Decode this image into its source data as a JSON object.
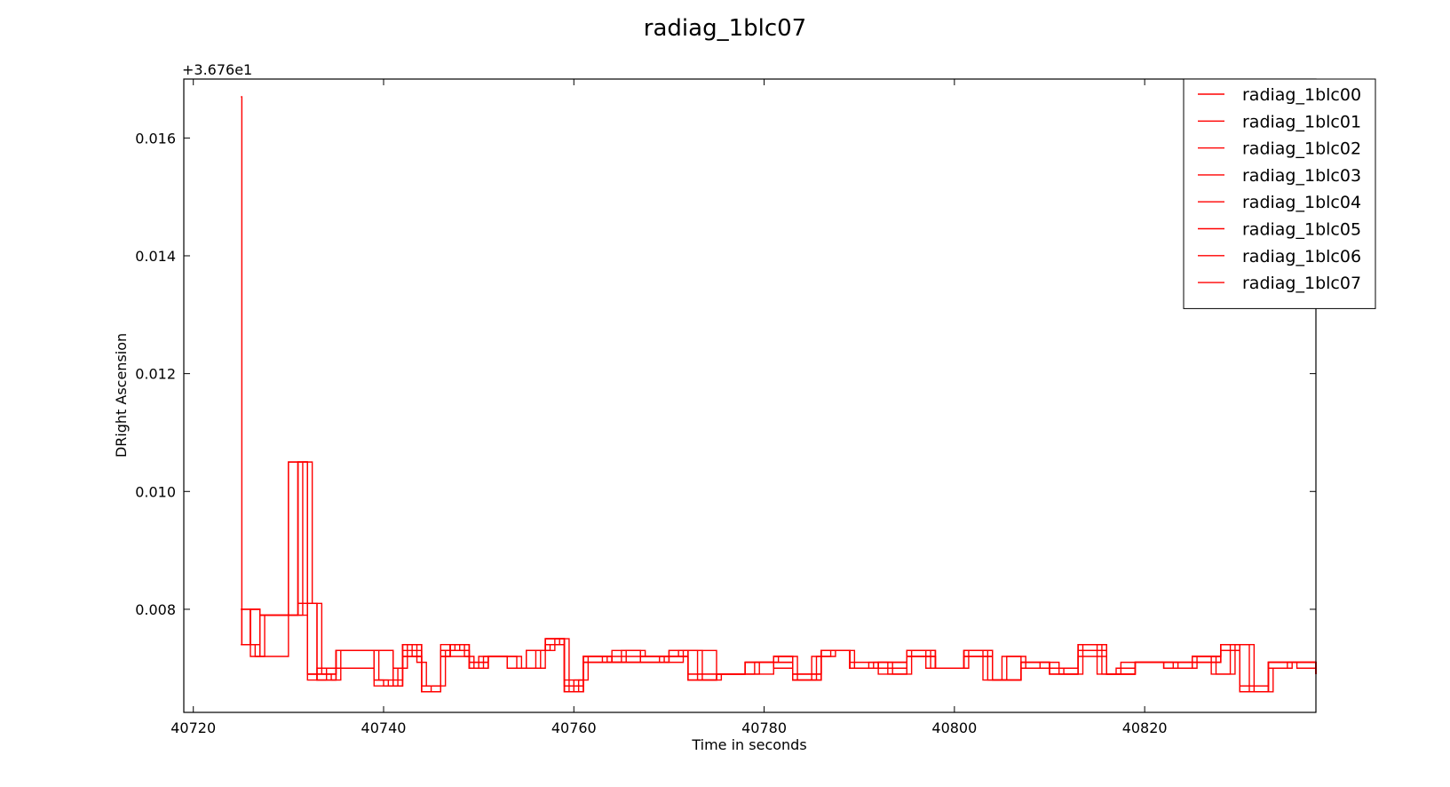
{
  "chart_data": {
    "type": "line",
    "title": "radiag_1blc07",
    "xlabel": "Time in seconds",
    "ylabel": "DRight Ascension",
    "y_offset_label": "+3.676e1",
    "y_offset": 36.76,
    "xlim": [
      40719,
      40838
    ],
    "ylim": [
      0.00625,
      0.017
    ],
    "xticks": [
      40720,
      40740,
      40760,
      40780,
      40800,
      40820
    ],
    "yticks": [
      0.008,
      0.01,
      0.012,
      0.014,
      0.016
    ],
    "xtick_labels": [
      "40720",
      "40740",
      "40760",
      "40780",
      "40800",
      "40820"
    ],
    "ytick_labels": [
      "0.008",
      "0.010",
      "0.012",
      "0.014",
      "0.016"
    ],
    "grid": false,
    "legend_position": "top-right",
    "line_color": "#ff0000",
    "series": [
      {
        "name": "radiag_1blc00",
        "x": [
          40725,
          40725.1,
          40726,
          40727,
          40730,
          40731,
          40732,
          40733,
          40734,
          40735,
          40736,
          40739,
          40740,
          40741,
          40742,
          40743,
          40744,
          40745,
          40746,
          40747,
          40748,
          40749,
          40750,
          40752,
          40754,
          40756,
          40757,
          40758,
          40759,
          40760,
          40761,
          40763,
          40765,
          40767,
          40769,
          40771,
          40773,
          40775,
          40777,
          40779,
          40781,
          40783,
          40785,
          40787,
          40789,
          40791,
          40793,
          40795,
          40797,
          40799,
          40801,
          40803,
          40805,
          40807,
          40809,
          40811,
          40813,
          40815,
          40817,
          40819,
          40821,
          40823,
          40825,
          40827,
          40829,
          40831,
          40833,
          40835,
          40837,
          40838
        ],
        "y": [
          0.0167,
          0.0074,
          0.008,
          0.0079,
          0.0105,
          0.0081,
          0.0069,
          0.0068,
          0.007,
          0.0073,
          0.0073,
          0.0068,
          0.0067,
          0.007,
          0.0074,
          0.0072,
          0.0066,
          0.0067,
          0.0072,
          0.0074,
          0.0073,
          0.007,
          0.0072,
          0.0072,
          0.007,
          0.0073,
          0.0073,
          0.0075,
          0.0066,
          0.0068,
          0.0072,
          0.0071,
          0.0073,
          0.0071,
          0.0072,
          0.0073,
          0.0068,
          0.0069,
          0.0069,
          0.0071,
          0.0072,
          0.0068,
          0.0072,
          0.0073,
          0.007,
          0.0071,
          0.0069,
          0.0073,
          0.007,
          0.007,
          0.0073,
          0.0068,
          0.0072,
          0.007,
          0.0071,
          0.0069,
          0.0074,
          0.0069,
          0.007,
          0.0071,
          0.0071,
          0.007,
          0.0072,
          0.0069,
          0.0074,
          0.0066,
          0.007,
          0.0071,
          0.0071,
          0.0069
        ]
      },
      {
        "name": "radiag_1blc01",
        "x": [
          40725,
          40725.1,
          40726.5,
          40727.5,
          40730.5,
          40731.5,
          40732.5,
          40733.5,
          40734.5,
          40735.5,
          40736.5,
          40739.5,
          40740.5,
          40741.5,
          40742.5,
          40743.5,
          40744.5,
          40745.5,
          40746.5,
          40747.5,
          40748.5,
          40749.5,
          40750.5,
          40752.5,
          40754.5,
          40756.5,
          40757.5,
          40758.5,
          40759.5,
          40760.5,
          40761.5,
          40763.5,
          40765.5,
          40767.5,
          40769.5,
          40771.5,
          40773.5,
          40775.5,
          40777.5,
          40779.5,
          40781.5,
          40783.5,
          40785.5,
          40787.5,
          40789.5,
          40791.5,
          40793.5,
          40795.5,
          40797.5,
          40799.5,
          40801.5,
          40803.5,
          40805.5,
          40807.5,
          40809.5,
          40811.5,
          40813.5,
          40815.5,
          40817.5,
          40819.5,
          40821.5,
          40823.5,
          40825.5,
          40827.5,
          40829.5,
          40831.5,
          40833.5,
          40835.5,
          40837.5,
          40838
        ],
        "y": [
          0.008,
          0.0074,
          0.0072,
          0.0079,
          0.0079,
          0.0105,
          0.0081,
          0.0069,
          0.0068,
          0.0073,
          0.0073,
          0.0068,
          0.0067,
          0.007,
          0.0074,
          0.0071,
          0.0067,
          0.0067,
          0.0073,
          0.0074,
          0.0072,
          0.007,
          0.0072,
          0.0072,
          0.007,
          0.0073,
          0.0074,
          0.0075,
          0.0066,
          0.0068,
          0.0072,
          0.0071,
          0.0073,
          0.0072,
          0.0071,
          0.0073,
          0.0068,
          0.0069,
          0.0069,
          0.0071,
          0.0072,
          0.0068,
          0.0072,
          0.0073,
          0.007,
          0.0071,
          0.0069,
          0.0073,
          0.007,
          0.007,
          0.0073,
          0.0068,
          0.0072,
          0.007,
          0.007,
          0.0069,
          0.0074,
          0.0069,
          0.0071,
          0.0071,
          0.0071,
          0.007,
          0.0072,
          0.0069,
          0.0074,
          0.0066,
          0.007,
          0.0071,
          0.0071,
          0.0069
        ]
      },
      {
        "name": "radiag_1blc02",
        "x": [
          40725,
          40726,
          40727,
          40730,
          40731,
          40732,
          40733,
          40735,
          40739,
          40741,
          40742,
          40744,
          40746,
          40747,
          40749,
          40751,
          40753,
          40755,
          40757,
          40759,
          40761,
          40764,
          40767,
          40770,
          40772,
          40775,
          40778,
          40781,
          40783,
          40786,
          40789,
          40792,
          40795,
          40798,
          40801,
          40804,
          40807,
          40810,
          40813,
          40816,
          40819,
          40822,
          40825,
          40828,
          40830,
          40833,
          40836,
          40838
        ],
        "y": [
          0.0074,
          0.008,
          0.0079,
          0.0079,
          0.0105,
          0.0069,
          0.0069,
          0.0073,
          0.0073,
          0.0067,
          0.0073,
          0.0066,
          0.0073,
          0.0074,
          0.007,
          0.0072,
          0.007,
          0.007,
          0.0075,
          0.0067,
          0.0072,
          0.0071,
          0.0072,
          0.0072,
          0.0073,
          0.0069,
          0.0069,
          0.0072,
          0.0068,
          0.0073,
          0.007,
          0.0071,
          0.0072,
          0.007,
          0.0073,
          0.0068,
          0.0071,
          0.007,
          0.0073,
          0.0069,
          0.0071,
          0.0071,
          0.0071,
          0.0073,
          0.0066,
          0.0071,
          0.0071,
          0.0069
        ]
      },
      {
        "name": "radiag_1blc03",
        "x": [
          40725,
          40726,
          40727,
          40730,
          40731,
          40732,
          40733,
          40735,
          40739,
          40741,
          40742,
          40744,
          40746,
          40747,
          40749,
          40751,
          40753,
          40755,
          40757,
          40759,
          40761,
          40764,
          40767,
          40770,
          40772,
          40775,
          40778,
          40781,
          40783,
          40786,
          40789,
          40792,
          40795,
          40798,
          40801,
          40804,
          40807,
          40810,
          40813,
          40816,
          40819,
          40822,
          40825,
          40828,
          40830,
          40833,
          40836,
          40838
        ],
        "y": [
          0.008,
          0.0072,
          0.0079,
          0.0079,
          0.0081,
          0.0068,
          0.007,
          0.0073,
          0.0068,
          0.007,
          0.0074,
          0.0067,
          0.0072,
          0.0073,
          0.007,
          0.0072,
          0.007,
          0.0073,
          0.0074,
          0.0066,
          0.0071,
          0.0073,
          0.0071,
          0.0073,
          0.0068,
          0.0069,
          0.0071,
          0.007,
          0.0069,
          0.0073,
          0.007,
          0.0069,
          0.0073,
          0.007,
          0.0072,
          0.0068,
          0.007,
          0.0069,
          0.0074,
          0.0069,
          0.0071,
          0.007,
          0.0072,
          0.0074,
          0.0067,
          0.0071,
          0.007,
          0.0069
        ]
      },
      {
        "name": "radiag_1blc04",
        "x": [
          40725,
          40726,
          40727,
          40730,
          40731,
          40732,
          40733,
          40735,
          40739,
          40741,
          40742,
          40744,
          40746,
          40747,
          40749,
          40751,
          40753,
          40755,
          40757,
          40759,
          40761,
          40764,
          40767,
          40770,
          40772,
          40775,
          40778,
          40781,
          40783,
          40786,
          40789,
          40792,
          40795,
          40798,
          40801,
          40804,
          40807,
          40810,
          40813,
          40816,
          40819,
          40822,
          40825,
          40828,
          40830,
          40833,
          40836,
          40838
        ],
        "y": [
          0.0074,
          0.0074,
          0.0079,
          0.0105,
          0.0105,
          0.0069,
          0.0068,
          0.0073,
          0.0067,
          0.007,
          0.0072,
          0.0066,
          0.0074,
          0.0072,
          0.0071,
          0.0072,
          0.007,
          0.0073,
          0.0075,
          0.0068,
          0.0071,
          0.0071,
          0.0072,
          0.0072,
          0.0069,
          0.0069,
          0.0071,
          0.0071,
          0.0069,
          0.0073,
          0.0071,
          0.007,
          0.0072,
          0.007,
          0.0073,
          0.0068,
          0.0071,
          0.0069,
          0.0072,
          0.0069,
          0.0071,
          0.0071,
          0.0071,
          0.0074,
          0.0066,
          0.0071,
          0.0071,
          0.0069
        ]
      },
      {
        "name": "radiag_1blc05",
        "x": [
          40725,
          40726,
          40727,
          40730,
          40731,
          40732,
          40733,
          40735,
          40739,
          40741,
          40742,
          40744,
          40746,
          40747,
          40749,
          40751,
          40753,
          40755,
          40757,
          40759,
          40761,
          40764,
          40767,
          40770,
          40772,
          40775,
          40778,
          40781,
          40783,
          40786,
          40789,
          40792,
          40795,
          40798,
          40801,
          40804,
          40807,
          40810,
          40813,
          40816,
          40819,
          40822,
          40825,
          40828,
          40830,
          40833,
          40836,
          40838
        ],
        "y": [
          0.008,
          0.008,
          0.0079,
          0.0079,
          0.0105,
          0.0081,
          0.0069,
          0.0073,
          0.0073,
          0.0067,
          0.0074,
          0.0067,
          0.0073,
          0.0074,
          0.007,
          0.0072,
          0.007,
          0.0073,
          0.0075,
          0.0066,
          0.0072,
          0.0071,
          0.0072,
          0.0073,
          0.0069,
          0.0069,
          0.0071,
          0.0072,
          0.0068,
          0.0073,
          0.007,
          0.0071,
          0.0073,
          0.007,
          0.0073,
          0.0068,
          0.0071,
          0.007,
          0.0074,
          0.0069,
          0.0071,
          0.0071,
          0.0072,
          0.0074,
          0.0066,
          0.0071,
          0.0071,
          0.0069
        ]
      },
      {
        "name": "radiag_1blc06",
        "x": [
          40725,
          40726,
          40727,
          40730,
          40731,
          40732,
          40733,
          40735,
          40739,
          40741,
          40742,
          40744,
          40746,
          40747,
          40749,
          40751,
          40753,
          40755,
          40757,
          40759,
          40761,
          40764,
          40767,
          40770,
          40772,
          40775,
          40778,
          40781,
          40783,
          40786,
          40789,
          40792,
          40795,
          40798,
          40801,
          40804,
          40807,
          40810,
          40813,
          40816,
          40819,
          40822,
          40825,
          40828,
          40830,
          40833,
          40836,
          40838
        ],
        "y": [
          0.0074,
          0.008,
          0.0072,
          0.0079,
          0.0079,
          0.0081,
          0.0068,
          0.007,
          0.0073,
          0.0068,
          0.0074,
          0.0066,
          0.0072,
          0.0073,
          0.0071,
          0.0072,
          0.007,
          0.0073,
          0.0074,
          0.0067,
          0.0071,
          0.0072,
          0.0071,
          0.0072,
          0.0068,
          0.0069,
          0.0071,
          0.0071,
          0.0069,
          0.0073,
          0.007,
          0.007,
          0.0073,
          0.007,
          0.0073,
          0.0068,
          0.007,
          0.007,
          0.0073,
          0.0069,
          0.0071,
          0.007,
          0.0071,
          0.0073,
          0.0067,
          0.0071,
          0.0071,
          0.0069
        ]
      },
      {
        "name": "radiag_1blc07",
        "x": [
          40725,
          40726,
          40727,
          40730,
          40731,
          40732,
          40733,
          40735,
          40739,
          40741,
          40742,
          40744,
          40746,
          40747,
          40749,
          40751,
          40753,
          40755,
          40757,
          40759,
          40761,
          40764,
          40767,
          40770,
          40772,
          40775,
          40778,
          40781,
          40783,
          40786,
          40789,
          40792,
          40795,
          40798,
          40801,
          40804,
          40807,
          40810,
          40813,
          40816,
          40819,
          40822,
          40825,
          40828,
          40830,
          40833,
          40836,
          40838
        ],
        "y": [
          0.008,
          0.0074,
          0.0079,
          0.0079,
          0.0105,
          0.0069,
          0.0069,
          0.0073,
          0.0073,
          0.0067,
          0.0072,
          0.0067,
          0.0073,
          0.0074,
          0.007,
          0.0072,
          0.007,
          0.0073,
          0.0075,
          0.0066,
          0.0072,
          0.0071,
          0.0072,
          0.0072,
          0.0068,
          0.0069,
          0.0071,
          0.0072,
          0.0068,
          0.0073,
          0.007,
          0.0071,
          0.0072,
          0.007,
          0.0072,
          0.0068,
          0.0071,
          0.0069,
          0.0074,
          0.0069,
          0.0071,
          0.0071,
          0.0072,
          0.0074,
          0.0066,
          0.0071,
          0.0071,
          0.0069
        ]
      }
    ]
  }
}
